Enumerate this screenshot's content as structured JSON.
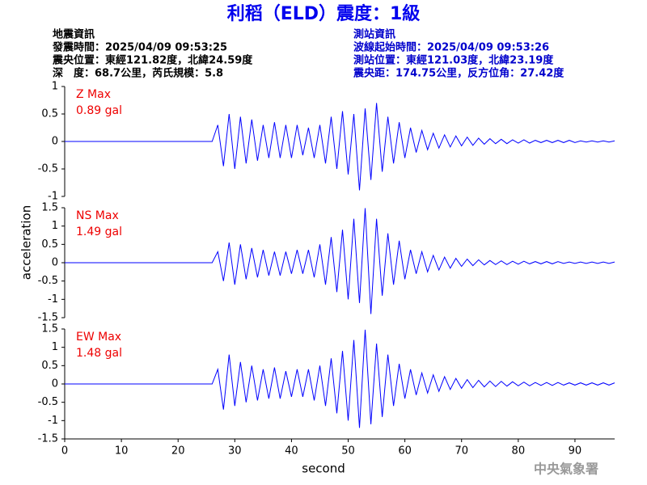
{
  "header": {
    "title": "利稻（ELD）震度：1級",
    "left": [
      "地震資訊",
      "發震時間：2025/04/09 09:53:25",
      "震央位置：東經121.82度，北緯24.59度",
      "深　度：68.7公里，芮氏規模：5.8"
    ],
    "right": [
      "測站資訊",
      "波線起始時間：2025/04/09 09:53:26",
      "測站位置：東經121.03度，北緯23.19度",
      "震央距：174.75公里，反方位角：27.42度"
    ],
    "watermark": "中央氣象署"
  },
  "chart_data": [
    {
      "type": "line",
      "label": "Z Max",
      "max_label": "0.89 gal",
      "xlim": [
        0,
        97
      ],
      "ylim": [
        -1,
        1
      ],
      "yticks": [
        -1,
        -0.5,
        0,
        0.5,
        1
      ],
      "x": [
        0,
        10,
        20,
        26,
        27,
        28,
        29,
        30,
        31,
        32,
        33,
        34,
        35,
        36,
        37,
        38,
        39,
        40,
        41,
        42,
        43,
        44,
        45,
        46,
        47,
        48,
        49,
        50,
        51,
        52,
        53,
        54,
        55,
        56,
        57,
        58,
        59,
        60,
        61,
        62,
        63,
        64,
        65,
        66,
        67,
        68,
        69,
        70,
        71,
        72,
        73,
        74,
        75,
        76,
        77,
        78,
        79,
        80,
        81,
        82,
        83,
        84,
        85,
        86,
        87,
        88,
        89,
        90,
        91,
        92,
        93,
        94,
        95,
        96,
        97
      ],
      "series": [
        {
          "color": "#0000ff",
          "values": [
            0,
            0,
            0,
            0,
            0.3,
            -0.45,
            0.5,
            -0.5,
            0.45,
            -0.4,
            0.4,
            -0.35,
            0.3,
            -0.3,
            0.35,
            -0.3,
            0.3,
            -0.3,
            0.3,
            -0.25,
            0.25,
            -0.3,
            0.3,
            -0.4,
            0.45,
            -0.5,
            0.55,
            -0.6,
            0.5,
            -0.89,
            0.6,
            -0.7,
            0.7,
            -0.55,
            0.45,
            -0.4,
            0.35,
            -0.3,
            0.25,
            -0.2,
            0.2,
            -0.15,
            0.15,
            -0.12,
            0.12,
            -0.1,
            0.1,
            -0.08,
            0.08,
            -0.07,
            0.06,
            -0.05,
            0.05,
            -0.04,
            0.04,
            -0.04,
            0.03,
            -0.03,
            0.03,
            -0.03,
            0.02,
            -0.02,
            0.02,
            -0.02,
            0.02,
            -0.02,
            0.02,
            -0.02,
            0.01,
            -0.01,
            0.01,
            -0.01,
            0.01,
            -0.01,
            0.01
          ]
        }
      ]
    },
    {
      "type": "line",
      "label": "NS Max",
      "max_label": "1.49 gal",
      "y_label": "acceleration",
      "xlim": [
        0,
        97
      ],
      "ylim": [
        -1.5,
        1.5
      ],
      "yticks": [
        -1.5,
        -1,
        -0.5,
        0,
        0.5,
        1,
        1.5
      ],
      "x": [
        0,
        10,
        20,
        26,
        27,
        28,
        29,
        30,
        31,
        32,
        33,
        34,
        35,
        36,
        37,
        38,
        39,
        40,
        41,
        42,
        43,
        44,
        45,
        46,
        47,
        48,
        49,
        50,
        51,
        52,
        53,
        54,
        55,
        56,
        57,
        58,
        59,
        60,
        61,
        62,
        63,
        64,
        65,
        66,
        67,
        68,
        69,
        70,
        71,
        72,
        73,
        74,
        75,
        76,
        77,
        78,
        79,
        80,
        81,
        82,
        83,
        84,
        85,
        86,
        87,
        88,
        89,
        90,
        91,
        92,
        93,
        94,
        95,
        96,
        97
      ],
      "series": [
        {
          "color": "#0000ff",
          "values": [
            0,
            0,
            0,
            0,
            0.3,
            -0.5,
            0.55,
            -0.6,
            0.5,
            -0.45,
            0.4,
            -0.4,
            0.35,
            -0.35,
            0.3,
            -0.35,
            0.3,
            -0.3,
            0.35,
            -0.3,
            0.35,
            -0.4,
            0.5,
            -0.6,
            0.7,
            -0.8,
            0.9,
            -1.0,
            1.2,
            -1.1,
            1.49,
            -1.4,
            1.2,
            -0.9,
            0.8,
            -0.6,
            0.6,
            -0.45,
            0.35,
            -0.3,
            0.3,
            -0.25,
            0.2,
            -0.2,
            0.15,
            -0.15,
            0.12,
            -0.1,
            0.1,
            -0.08,
            0.08,
            -0.06,
            0.06,
            -0.05,
            0.05,
            -0.05,
            0.04,
            -0.04,
            0.04,
            -0.03,
            0.03,
            -0.03,
            0.03,
            -0.03,
            0.03,
            -0.02,
            0.02,
            -0.02,
            0.02,
            -0.02,
            0.02,
            -0.02,
            0.02,
            -0.02,
            0.02
          ]
        }
      ]
    },
    {
      "type": "line",
      "label": "EW Max",
      "max_label": "1.48 gal",
      "x_label": "second",
      "xlim": [
        0,
        97
      ],
      "ylim": [
        -1.5,
        1.5
      ],
      "yticks": [
        -1.5,
        -1,
        -0.5,
        0,
        0.5,
        1,
        1.5
      ],
      "xticks": [
        0,
        10,
        20,
        30,
        40,
        50,
        60,
        70,
        80,
        90
      ],
      "x": [
        0,
        10,
        20,
        26,
        27,
        28,
        29,
        30,
        31,
        32,
        33,
        34,
        35,
        36,
        37,
        38,
        39,
        40,
        41,
        42,
        43,
        44,
        45,
        46,
        47,
        48,
        49,
        50,
        51,
        52,
        53,
        54,
        55,
        56,
        57,
        58,
        59,
        60,
        61,
        62,
        63,
        64,
        65,
        66,
        67,
        68,
        69,
        70,
        71,
        72,
        73,
        74,
        75,
        76,
        77,
        78,
        79,
        80,
        81,
        82,
        83,
        84,
        85,
        86,
        87,
        88,
        89,
        90,
        91,
        92,
        93,
        94,
        95,
        96,
        97
      ],
      "series": [
        {
          "color": "#0000ff",
          "values": [
            0,
            0,
            0,
            0,
            0.4,
            -0.7,
            0.8,
            -0.6,
            0.6,
            -0.5,
            0.5,
            -0.45,
            0.4,
            -0.4,
            0.45,
            -0.4,
            0.35,
            -0.35,
            0.4,
            -0.35,
            0.4,
            -0.45,
            0.5,
            -0.6,
            0.7,
            -0.8,
            0.9,
            -1.0,
            1.2,
            -1.2,
            1.48,
            -1.1,
            1.1,
            -0.9,
            0.8,
            -0.6,
            0.55,
            -0.4,
            0.4,
            -0.3,
            0.3,
            -0.25,
            0.25,
            -0.2,
            0.2,
            -0.15,
            0.15,
            -0.12,
            0.12,
            -0.1,
            0.1,
            -0.08,
            0.08,
            -0.07,
            0.07,
            -0.06,
            0.06,
            -0.05,
            0.05,
            -0.05,
            0.04,
            -0.04,
            0.04,
            -0.04,
            0.04,
            -0.03,
            0.03,
            -0.03,
            0.03,
            -0.03,
            0.03,
            -0.03,
            0.03,
            -0.03,
            0.03
          ]
        }
      ]
    }
  ]
}
